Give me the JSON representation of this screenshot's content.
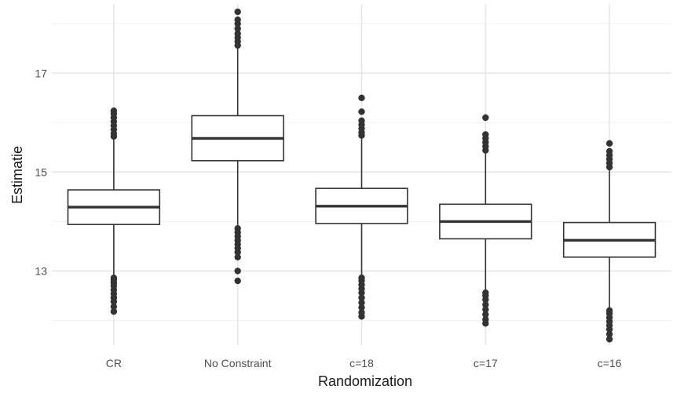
{
  "chart_data": {
    "type": "boxplot",
    "xlabel": "Randomization",
    "ylabel": "Estimatie",
    "ylim": [
      11.5,
      18.4
    ],
    "yticks": [
      13,
      15,
      17
    ],
    "minor_yticks": [
      12,
      14,
      16,
      18
    ],
    "grid": true,
    "categories": [
      "CR",
      "No Constraint",
      "c=18",
      "c=17",
      "c=16"
    ],
    "boxes": [
      {
        "category": "CR",
        "q1": 13.94,
        "median": 14.29,
        "q3": 14.64,
        "whisker_low": 12.9,
        "whisker_high": 15.68,
        "outliers": [
          12.18,
          12.28,
          12.38,
          12.46,
          12.54,
          12.62,
          12.7,
          12.76,
          12.82,
          12.86,
          15.72,
          15.78,
          15.86,
          15.94,
          16.02,
          16.1,
          16.18,
          16.24
        ]
      },
      {
        "category": "No Constraint",
        "q1": 15.23,
        "median": 15.68,
        "q3": 16.14,
        "whisker_low": 13.9,
        "whisker_high": 17.5,
        "outliers": [
          12.8,
          13.0,
          13.28,
          13.38,
          13.46,
          13.54,
          13.62,
          13.7,
          13.78,
          13.86,
          17.56,
          17.64,
          17.72,
          17.8,
          17.9,
          18.0,
          18.08,
          18.24
        ]
      },
      {
        "category": "c=18",
        "q1": 13.96,
        "median": 14.31,
        "q3": 14.67,
        "whisker_low": 12.88,
        "whisker_high": 15.7,
        "outliers": [
          12.08,
          12.16,
          12.26,
          12.36,
          12.46,
          12.56,
          12.64,
          12.72,
          12.8,
          12.86,
          15.74,
          15.8,
          15.88,
          15.96,
          16.04,
          16.22,
          16.5
        ]
      },
      {
        "category": "c=17",
        "q1": 13.65,
        "median": 14.0,
        "q3": 14.35,
        "whisker_low": 12.58,
        "whisker_high": 15.4,
        "outliers": [
          11.94,
          12.02,
          12.12,
          12.22,
          12.32,
          12.42,
          12.5,
          12.56,
          15.44,
          15.52,
          15.6,
          15.68,
          15.76,
          16.1
        ]
      },
      {
        "category": "c=16",
        "q1": 13.28,
        "median": 13.62,
        "q3": 13.98,
        "whisker_low": 12.22,
        "whisker_high": 15.06,
        "outliers": [
          11.62,
          11.72,
          11.82,
          11.9,
          11.98,
          12.06,
          12.14,
          12.2,
          15.1,
          15.18,
          15.26,
          15.34,
          15.42,
          15.58
        ]
      }
    ]
  }
}
